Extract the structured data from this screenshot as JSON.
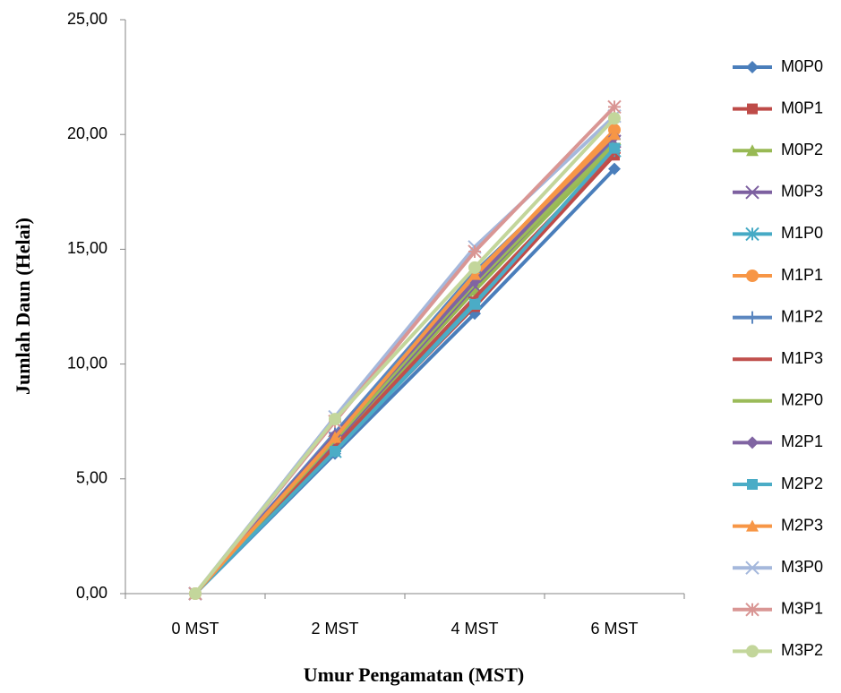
{
  "chart_data": {
    "type": "line",
    "y_label": "Jumlah  Daun (Helai)",
    "x_label": "Umur Pengamatan (MST)",
    "categories": [
      "0 MST",
      "2 MST",
      "4 MST",
      "6 MST"
    ],
    "ylim": [
      0,
      25
    ],
    "yticks": [
      {
        "value": 0,
        "label": "0,00"
      },
      {
        "value": 5,
        "label": "5,00"
      },
      {
        "value": 10,
        "label": "10,00"
      },
      {
        "value": 15,
        "label": "15,00"
      },
      {
        "value": 20,
        "label": "20,00"
      },
      {
        "value": 25,
        "label": "25,00"
      }
    ],
    "legend": "right",
    "series": [
      {
        "name": "M0P0",
        "color": "#4a7ebb",
        "marker": "diamond",
        "values": [
          0,
          6.1,
          12.2,
          18.5
        ]
      },
      {
        "name": "M0P1",
        "color": "#be4b48",
        "marker": "square",
        "values": [
          0,
          6.3,
          12.5,
          19.1
        ]
      },
      {
        "name": "M0P2",
        "color": "#98b954",
        "marker": "triangle",
        "values": [
          0,
          6.5,
          13.2,
          19.5
        ]
      },
      {
        "name": "M0P3",
        "color": "#7d60a0",
        "marker": "x",
        "values": [
          0,
          6.6,
          13.4,
          19.7
        ]
      },
      {
        "name": "M1P0",
        "color": "#46aac5",
        "marker": "star",
        "values": [
          0,
          6.2,
          12.7,
          19.3
        ]
      },
      {
        "name": "M1P1",
        "color": "#f79646",
        "marker": "circle",
        "values": [
          0,
          6.8,
          13.8,
          20.2
        ]
      },
      {
        "name": "M1P2",
        "color": "#5b87c0",
        "marker": "plus",
        "values": [
          0,
          7.0,
          14.0,
          19.8
        ]
      },
      {
        "name": "M1P3",
        "color": "#c0504d",
        "marker": "dash",
        "values": [
          0,
          6.4,
          12.9,
          19.2
        ]
      },
      {
        "name": "M2P0",
        "color": "#9bbb59",
        "marker": "dash",
        "values": [
          0,
          6.7,
          13.5,
          19.6
        ]
      },
      {
        "name": "M2P1",
        "color": "#8064a2",
        "marker": "diamond",
        "values": [
          0,
          6.9,
          13.6,
          19.9
        ]
      },
      {
        "name": "M2P2",
        "color": "#4bacc6",
        "marker": "square",
        "values": [
          0,
          6.2,
          12.6,
          19.4
        ]
      },
      {
        "name": "M2P3",
        "color": "#f79646",
        "marker": "triangle",
        "values": [
          0,
          6.8,
          13.9,
          20.0
        ]
      },
      {
        "name": "M3P0",
        "color": "#a5b8dc",
        "marker": "x",
        "values": [
          0,
          7.7,
          15.1,
          20.8
        ]
      },
      {
        "name": "M3P1",
        "color": "#d99694",
        "marker": "star",
        "values": [
          0,
          7.5,
          14.9,
          21.2
        ]
      },
      {
        "name": "M3P2",
        "color": "#c3d69b",
        "marker": "circle",
        "values": [
          0,
          7.6,
          14.2,
          20.7
        ]
      }
    ]
  }
}
